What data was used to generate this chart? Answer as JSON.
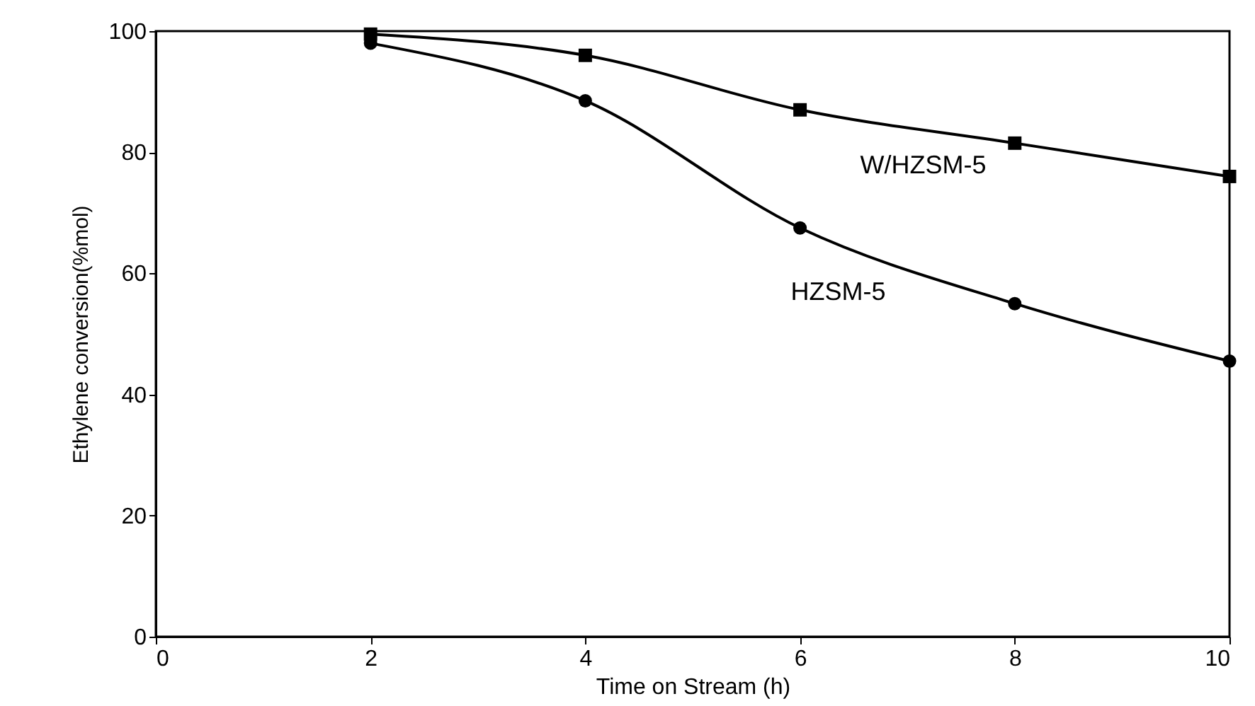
{
  "chart_data": {
    "type": "line",
    "xlabel": "Time on Stream (h)",
    "ylabel": "Ethylene conversion(%mol)",
    "x": [
      2,
      4,
      6,
      8,
      10
    ],
    "series": [
      {
        "name": "W/HZSM-5",
        "color": "#000000",
        "marker": "square",
        "values": [
          99.5,
          96,
          87,
          81.5,
          76
        ]
      },
      {
        "name": "HZSM-5",
        "color": "#000000",
        "marker": "circle",
        "values": [
          98,
          88.5,
          67.5,
          55,
          45.5
        ]
      }
    ],
    "xlim": [
      0,
      10
    ],
    "xticks": [
      0,
      2,
      4,
      6,
      8,
      10
    ],
    "ylim": [
      0,
      100
    ],
    "yticks": [
      0,
      20,
      40,
      60,
      80,
      100
    ],
    "grid": false
  }
}
